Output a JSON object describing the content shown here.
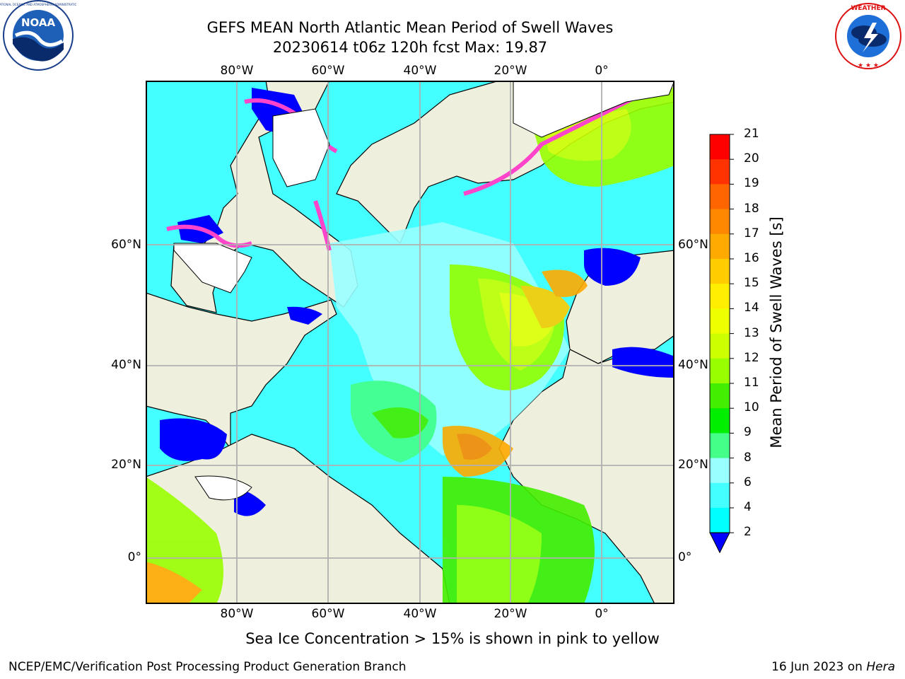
{
  "header": {
    "title_line1": "GEFS MEAN North Atlantic Mean Period of Swell Waves",
    "title_line2": "20230614 t06z 120h fcst   Max: 19.87"
  },
  "logos": {
    "left": "noaa-logo",
    "left_ring_text": "NATIONAL OCEANIC AND ATMOSPHERIC ADMINISTRATION · U.S. DEPARTMENT OF COMMERCE",
    "left_center_text": "NOAA",
    "right": "national-weather-service-logo",
    "right_ring_text": "NATIONAL WEATHER SERVICE"
  },
  "map": {
    "lon_labels": [
      "80°W",
      "60°W",
      "40°W",
      "20°W",
      "0°"
    ],
    "lat_labels": [
      "60°N",
      "40°N",
      "20°N",
      "0°"
    ],
    "ocean_color": "#44ffff",
    "land_color": "#efefde"
  },
  "colorbar": {
    "label": "Mean Period of Swell Waves [s]",
    "ticks": [
      "21",
      "20",
      "19",
      "18",
      "17",
      "16",
      "15",
      "14",
      "13",
      "12",
      "11",
      "10",
      "9",
      "8",
      "6",
      "4",
      "2"
    ],
    "colors": [
      "#ff0000",
      "#ff3300",
      "#ff6600",
      "#ff8800",
      "#ffaa00",
      "#ffcc00",
      "#ffee00",
      "#eeff00",
      "#ccff00",
      "#99ff00",
      "#44ee00",
      "#00ee00",
      "#44ff88",
      "#99ffff",
      "#44ffff",
      "#00ffff",
      "#00ccff",
      "#0077ff"
    ],
    "extend_color": "#0000ff"
  },
  "subtitle": "Sea Ice Concentration > 15% is shown in pink to yellow",
  "footer": {
    "left": "NCEP/EMC/Verification Post Processing Product Generation Branch",
    "right_prefix": "16 Jun 2023 on ",
    "right_host": "Hera"
  }
}
